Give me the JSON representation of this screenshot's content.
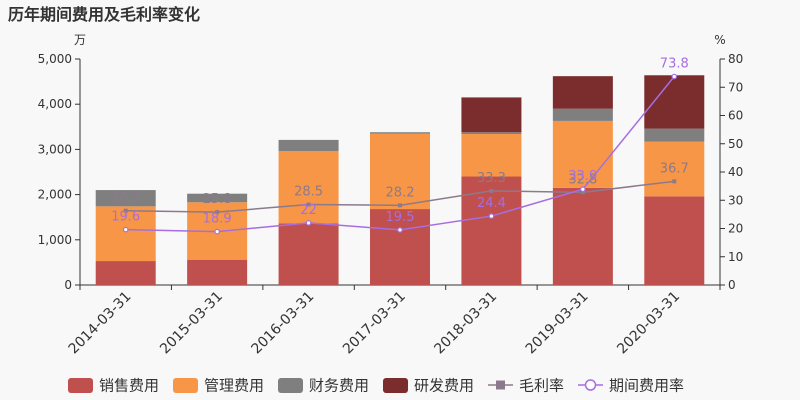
{
  "title": "历年期间费用及毛利率变化",
  "chart_data": {
    "type": "bar",
    "stacked": true,
    "categories": [
      "2014-03-31",
      "2015-03-31",
      "2016-03-31",
      "2017-03-31",
      "2018-03-31",
      "2019-03-31",
      "2020-03-31"
    ],
    "y_left": {
      "unit": "万",
      "min": 0,
      "max": 5000,
      "ticks": [
        0,
        1000,
        2000,
        3000,
        4000,
        5000
      ],
      "tick_labels": [
        "0",
        "1,000",
        "2,000",
        "3,000",
        "4,000",
        "5,000"
      ]
    },
    "y_right": {
      "unit": "%",
      "min": 0,
      "max": 80,
      "ticks": [
        0,
        10,
        20,
        30,
        40,
        50,
        60,
        70,
        80
      ],
      "tick_labels": [
        "0",
        "10",
        "20",
        "30",
        "40",
        "50",
        "60",
        "70",
        "80"
      ]
    },
    "series": [
      {
        "name": "销售费用",
        "kind": "bar",
        "color": "#c0504d",
        "values": [
          530,
          560,
          1360,
          1680,
          2400,
          2150,
          1960
        ]
      },
      {
        "name": "管理费用",
        "kind": "bar",
        "color": "#f79646",
        "values": [
          1210,
          1270,
          1600,
          1670,
          940,
          1480,
          1210
        ]
      },
      {
        "name": "财务费用",
        "kind": "bar",
        "color": "#7f7f7f",
        "values": [
          360,
          190,
          250,
          30,
          40,
          270,
          290
        ]
      },
      {
        "name": "研发费用",
        "kind": "bar",
        "color": "#7b2c2c",
        "values": [
          0,
          0,
          0,
          0,
          770,
          720,
          1180
        ]
      },
      {
        "name": "毛利率",
        "kind": "line",
        "axis": "right",
        "color": "#8c7a8c",
        "marker": "square",
        "values": [
          26.3,
          25.8,
          28.5,
          28.2,
          33.3,
          32.8,
          36.7
        ],
        "labels": [
          "26.3",
          "25.8",
          "28.5",
          "28.2",
          "33.3",
          "32.8",
          "36.7"
        ]
      },
      {
        "name": "期间费用率",
        "kind": "line",
        "axis": "right",
        "color": "#a66ee0",
        "marker": "circle",
        "values": [
          19.6,
          18.9,
          22,
          19.5,
          24.4,
          33.9,
          73.8
        ],
        "labels": [
          "19.6",
          "18.9",
          "22",
          "19.5",
          "24.4",
          "33.9",
          "73.8"
        ]
      }
    ],
    "legend": {
      "position": "bottom"
    },
    "grid": false
  }
}
